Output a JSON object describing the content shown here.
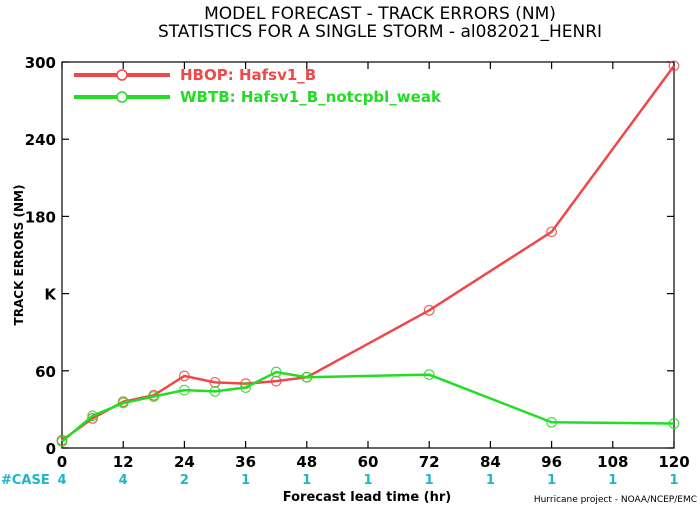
{
  "chart_data": {
    "type": "line",
    "title": "MODEL FORECAST - TRACK ERRORS (NM)",
    "subtitle": "STATISTICS FOR A SINGLE STORM - al082021_HENRI",
    "xlabel": "Forecast lead time (hr)",
    "ylabel": "TRACK ERRORS (NM)",
    "xlim": [
      0,
      120
    ],
    "ylim": [
      0,
      300
    ],
    "x_ticks": [
      0,
      12,
      24,
      36,
      48,
      60,
      72,
      84,
      96,
      108,
      120
    ],
    "y_ticks": [
      0,
      60,
      120,
      180,
      240,
      300
    ],
    "y_tick_labels": [
      "0",
      "60",
      "K",
      "180",
      "240",
      "300"
    ],
    "grid": false,
    "legend_position": "top-left",
    "series": [
      {
        "name": "HBOP: Hafsv1_B",
        "color": "#f04848",
        "x": [
          0,
          6,
          12,
          18,
          24,
          30,
          36,
          42,
          48,
          72,
          96,
          120
        ],
        "y": [
          6,
          23,
          36,
          41,
          56,
          51,
          50,
          52,
          55,
          107,
          168,
          297
        ]
      },
      {
        "name": "WBTB: Hafsv1_B_notcpbl_weak",
        "color": "#22dd22",
        "x": [
          0,
          6,
          12,
          18,
          24,
          30,
          36,
          42,
          48,
          72,
          96,
          120
        ],
        "y": [
          5,
          25,
          35,
          40,
          45,
          44,
          47,
          59,
          55,
          57,
          20,
          19
        ]
      }
    ],
    "case_label": "#CASE",
    "cases": [
      {
        "x": 0,
        "n": "4"
      },
      {
        "x": 12,
        "n": "4"
      },
      {
        "x": 24,
        "n": "2"
      },
      {
        "x": 36,
        "n": "1"
      },
      {
        "x": 48,
        "n": "1"
      },
      {
        "x": 60,
        "n": "1"
      },
      {
        "x": 72,
        "n": "1"
      },
      {
        "x": 84,
        "n": "1"
      },
      {
        "x": 96,
        "n": "1"
      },
      {
        "x": 108,
        "n": "1"
      },
      {
        "x": 120,
        "n": "1"
      }
    ],
    "credit": "Hurricane project - NOAA/NCEP/EMC"
  }
}
